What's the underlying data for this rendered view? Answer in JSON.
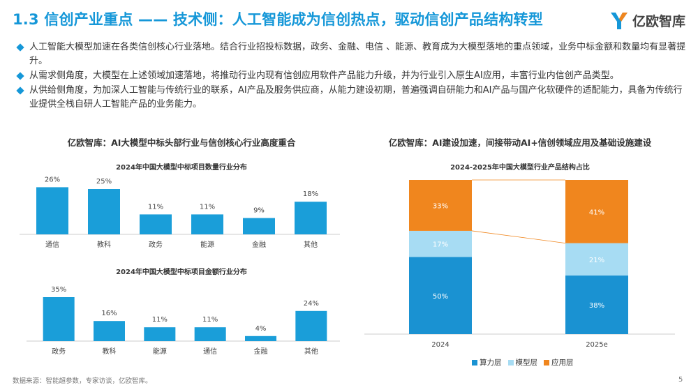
{
  "page": {
    "title": "1.3 信创产业重点 —— 技术侧：人工智能成为信创热点，驱动信创产品结构转型",
    "logo_text": "亿欧智库",
    "bullets": [
      "人工智能大模型加速在各类信创核心行业落地。结合行业招投标数据，政务、金融、电信 、能源、教育成为大模型落地的重点领域，业务中标金额和数量均有显著提升。",
      "从需求侧角度，大模型在上述领域加速落地，将推动行业内现有信创应用软件产品能力升级，并为行业引入原生AI应用，丰富行业内信创产品类型。",
      "从供给侧角度，为加深人工智能与传统行业的联系，AI产品及服务供应商，从能力建设初期，普遍强调自研能力和AI产品与国产化软硬件的适配能力，具备为传统行业提供全栈自研人工智能产品的业务能力。"
    ],
    "left_heading": "亿欧智库：AI大模型中标头部行业与信创核心行业高度重合",
    "right_heading": "亿欧智库：AI建设加速，间接带动AI+信创领域应用及基础设施建设",
    "source": "数据来源：智能超参数，专家访谈，亿欧智库。",
    "page_number": "5",
    "colors": {
      "accent": "#1597d8",
      "bar": "#1a9ed9",
      "compute": "#1a92d2",
      "model": "#a7dcf3",
      "app": "#f0861e"
    }
  },
  "chart_data": [
    {
      "type": "bar",
      "title": "2024年中国大模型中标项目数量行业分布",
      "categories": [
        "通信",
        "教科",
        "政务",
        "能源",
        "金融",
        "其他"
      ],
      "values": [
        26,
        25,
        11,
        11,
        9,
        18
      ],
      "value_labels": [
        "26%",
        "25%",
        "11%",
        "11%",
        "9%",
        "18%"
      ],
      "ylim": [
        0,
        30
      ]
    },
    {
      "type": "bar",
      "title": "2024年中国大模型中标项目金额行业分布",
      "categories": [
        "政务",
        "教科",
        "能源",
        "通信",
        "金融",
        "其他"
      ],
      "values": [
        35,
        16,
        11,
        11,
        4,
        24
      ],
      "value_labels": [
        "35%",
        "16%",
        "11%",
        "11%",
        "4%",
        "24%"
      ],
      "ylim": [
        0,
        40
      ]
    },
    {
      "type": "bar",
      "stacked": true,
      "title": "2024-2025年中国大模型行业产品结构占比",
      "categories": [
        "2024",
        "2025e"
      ],
      "series": [
        {
          "name": "算力层",
          "values": [
            50,
            38
          ],
          "labels": [
            "50%",
            "38%"
          ],
          "color": "#1a92d2"
        },
        {
          "name": "模型层",
          "values": [
            17,
            21
          ],
          "labels": [
            "17%",
            "21%"
          ],
          "color": "#a7dcf3"
        },
        {
          "name": "应用层",
          "values": [
            33,
            41
          ],
          "labels": [
            "33%",
            "41%"
          ],
          "color": "#f0861e"
        }
      ],
      "ylim": [
        0,
        100
      ],
      "legend": "bottom"
    }
  ]
}
